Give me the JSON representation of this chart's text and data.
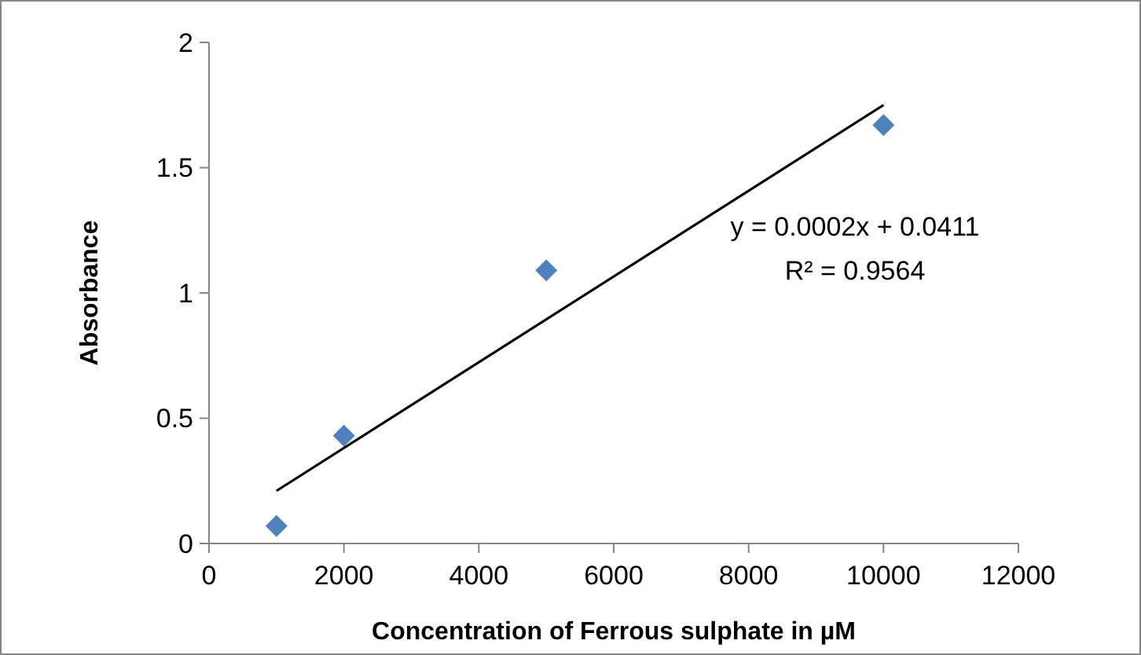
{
  "chart_data": {
    "type": "scatter",
    "xlabel": "Concentration of Ferrous sulphate in µM",
    "ylabel": "Absorbance",
    "xlim": [
      0,
      12000
    ],
    "xticks": [
      0,
      2000,
      4000,
      6000,
      8000,
      10000,
      12000
    ],
    "ylim": [
      0,
      2
    ],
    "yticks": [
      0,
      0.5,
      1,
      1.5,
      2
    ],
    "grid": false,
    "marker": "diamond",
    "series": [
      {
        "color": "#4f81bd",
        "x": [
          1000,
          2000,
          5000,
          10000
        ],
        "values": [
          0.07,
          0.43,
          1.09,
          1.67
        ]
      },
      {
        "type": "line",
        "color": "#000000",
        "x": [
          1000,
          10000
        ],
        "values": [
          0.21,
          1.75
        ],
        "marker": "none",
        "line_style": "solid"
      }
    ],
    "annotations": [
      "y = 0.0002x + 0.0411",
      "R² = 0.9564"
    ]
  }
}
